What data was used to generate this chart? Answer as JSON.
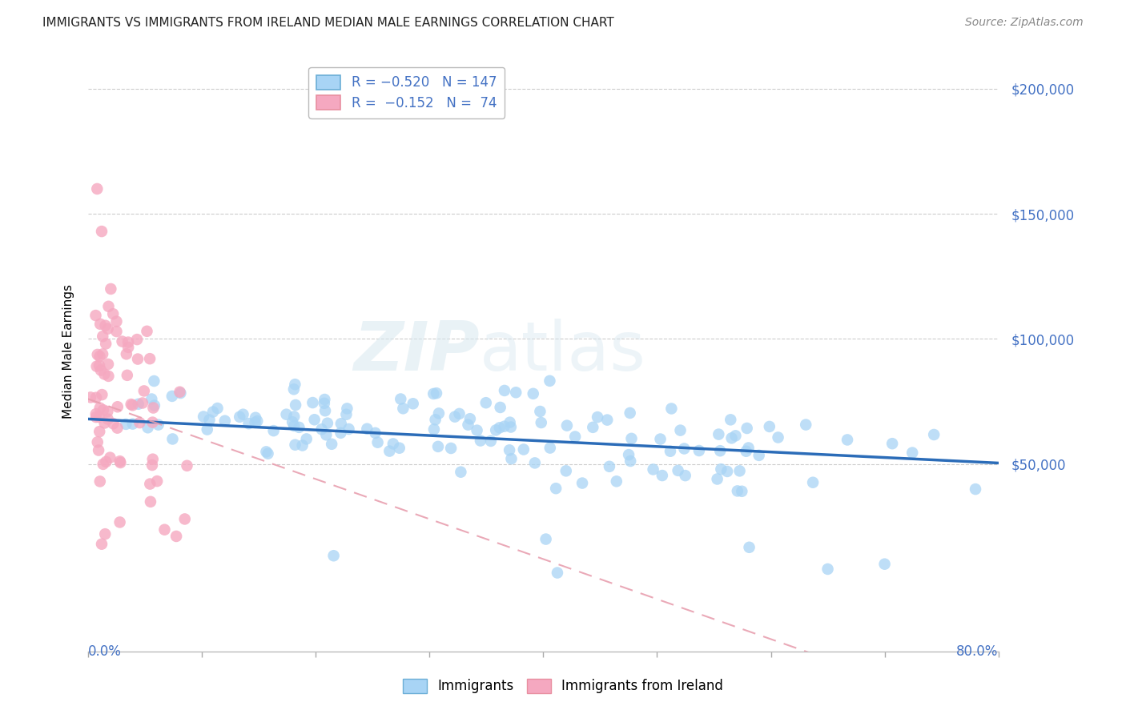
{
  "title": "IMMIGRANTS VS IMMIGRANTS FROM IRELAND MEDIAN MALE EARNINGS CORRELATION CHART",
  "source": "Source: ZipAtlas.com",
  "ylabel": "Median Male Earnings",
  "xlim": [
    0.0,
    0.8
  ],
  "ylim": [
    -25000,
    215000
  ],
  "immigrants_color": "#A8D4F5",
  "ireland_color": "#F5A8C0",
  "immigrants_line_color": "#2B6CB8",
  "ireland_line_color": "#E8A0B0",
  "blue_R": -0.52,
  "blue_N": 147,
  "pink_R": -0.152,
  "pink_N": 74,
  "watermark_zip": "ZIP",
  "watermark_atlas": "atlas",
  "background_color": "#ffffff",
  "ytick_color": "#4472C4",
  "xlabel_color": "#4472C4",
  "grid_color": "#cccccc",
  "title_color": "#222222",
  "source_color": "#888888"
}
